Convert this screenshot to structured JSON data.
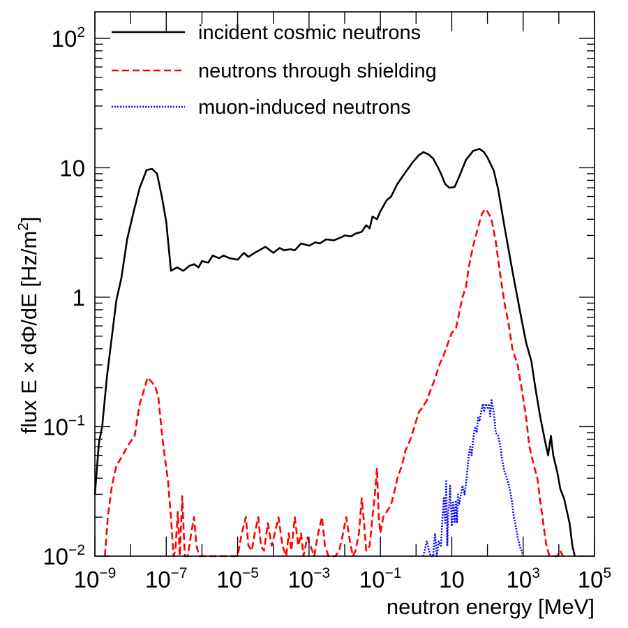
{
  "chart_data": {
    "type": "line",
    "xlabel": "neutron energy [MeV]",
    "ylabel": "flux E × dΦ/dE [Hz/m²]",
    "ylabel_main": "flux E × dΦ/dE [Hz/m",
    "ylabel_sup": "2",
    "ylabel_end": "]",
    "xscale": "log",
    "yscale": "log",
    "xlim": [
      1e-09,
      100000.0
    ],
    "ylim": [
      0.01,
      160
    ],
    "x_ticks": [
      {
        "value": 1e-09,
        "base": "10",
        "exp": "−9"
      },
      {
        "value": 1e-07,
        "base": "10",
        "exp": "−7"
      },
      {
        "value": 1e-05,
        "base": "10",
        "exp": "−5"
      },
      {
        "value": 0.001,
        "base": "10",
        "exp": "−3"
      },
      {
        "value": 0.1,
        "base": "10",
        "exp": "−1"
      },
      {
        "value": 10,
        "base": "10",
        "exp": ""
      },
      {
        "value": 1000,
        "base": "10",
        "exp": "3"
      },
      {
        "value": 100000,
        "base": "10",
        "exp": "5"
      }
    ],
    "y_ticks": [
      {
        "value": 0.01,
        "base": "10",
        "exp": "−2"
      },
      {
        "value": 0.1,
        "base": "10",
        "exp": "−1"
      },
      {
        "value": 1,
        "base": "1",
        "exp": ""
      },
      {
        "value": 10,
        "base": "10",
        "exp": ""
      },
      {
        "value": 100,
        "base": "10",
        "exp": "2"
      }
    ],
    "legend_position": "top-right",
    "series": [
      {
        "name": "incident cosmic neutrons",
        "color": "#000000",
        "style": "solid",
        "points": [
          [
            1e-09,
            0.03
          ],
          [
            1.3e-09,
            0.075
          ],
          [
            1.6e-09,
            0.1
          ],
          [
            2.2e-09,
            0.25
          ],
          [
            3e-09,
            0.5
          ],
          [
            4e-09,
            0.95
          ],
          [
            5.5e-09,
            1.4
          ],
          [
            8e-09,
            2.8
          ],
          [
            1.2e-08,
            4.5
          ],
          [
            1.8e-08,
            7.0
          ],
          [
            2.8e-08,
            9.6
          ],
          [
            4e-08,
            9.8
          ],
          [
            5.5e-08,
            9.0
          ],
          [
            7.5e-08,
            6.0
          ],
          [
            1e-07,
            3.8
          ],
          [
            1.35e-07,
            1.6
          ],
          [
            2e-07,
            1.7
          ],
          [
            3e-07,
            1.6
          ],
          [
            4.5e-07,
            1.75
          ],
          [
            6e-07,
            1.8
          ],
          [
            8e-07,
            1.7
          ],
          [
            1e-06,
            1.9
          ],
          [
            1.5e-06,
            1.85
          ],
          [
            2e-06,
            2.1
          ],
          [
            3e-06,
            2.0
          ],
          [
            4e-06,
            2.1
          ],
          [
            6e-06,
            2.0
          ],
          [
            1e-05,
            1.95
          ],
          [
            1.5e-05,
            2.2
          ],
          [
            2e-05,
            2.05
          ],
          [
            3e-05,
            2.2
          ],
          [
            4e-05,
            2.3
          ],
          [
            6e-05,
            2.45
          ],
          [
            0.0001,
            2.2
          ],
          [
            0.00015,
            2.4
          ],
          [
            0.0002,
            2.3
          ],
          [
            0.0003,
            2.35
          ],
          [
            0.0004,
            2.3
          ],
          [
            0.0006,
            2.6
          ],
          [
            0.001,
            2.5
          ],
          [
            0.0015,
            2.65
          ],
          [
            0.002,
            2.6
          ],
          [
            0.003,
            2.8
          ],
          [
            0.005,
            2.75
          ],
          [
            0.008,
            2.9
          ],
          [
            0.01,
            3.0
          ],
          [
            0.015,
            2.95
          ],
          [
            0.02,
            3.1
          ],
          [
            0.03,
            3.2
          ],
          [
            0.04,
            3.6
          ],
          [
            0.05,
            3.4
          ],
          [
            0.06,
            4.2
          ],
          [
            0.08,
            4.0
          ],
          [
            0.1,
            4.6
          ],
          [
            0.15,
            5.6
          ],
          [
            0.2,
            6.0
          ],
          [
            0.3,
            7.5
          ],
          [
            0.5,
            9.2
          ],
          [
            0.8,
            11.0
          ],
          [
            1.2,
            12.5
          ],
          [
            1.6,
            13.2
          ],
          [
            2.2,
            12.7
          ],
          [
            3,
            11.8
          ],
          [
            4,
            10.2
          ],
          [
            5,
            9.0
          ],
          [
            6.5,
            7.5
          ],
          [
            8.5,
            7.0
          ],
          [
            12,
            7.1
          ],
          [
            16,
            8.5
          ],
          [
            25,
            11.5
          ],
          [
            40,
            13.5
          ],
          [
            60,
            14.0
          ],
          [
            80,
            13.2
          ],
          [
            100,
            12.0
          ],
          [
            150,
            9.5
          ],
          [
            200,
            6.8
          ],
          [
            300,
            3.5
          ],
          [
            500,
            1.6
          ],
          [
            800,
            0.8
          ],
          [
            1200,
            0.45
          ],
          [
            1700,
            0.32
          ],
          [
            2200,
            0.2
          ],
          [
            3000,
            0.12
          ],
          [
            4000,
            0.08
          ],
          [
            5000,
            0.06
          ],
          [
            6000,
            0.085
          ],
          [
            7000,
            0.06
          ],
          [
            9000,
            0.045
          ],
          [
            11000,
            0.033
          ],
          [
            14000,
            0.028
          ],
          [
            17000,
            0.022
          ],
          [
            20000,
            0.018
          ],
          [
            24000,
            0.012
          ],
          [
            28000,
            0.01
          ]
        ]
      },
      {
        "name": "neutrons through shielding",
        "color": "#ff0000",
        "style": "dashed",
        "points": [
          [
            1.9e-09,
            0.01
          ],
          [
            2.3e-09,
            0.02
          ],
          [
            3e-09,
            0.035
          ],
          [
            4e-09,
            0.05
          ],
          [
            6e-09,
            0.06
          ],
          [
            8e-09,
            0.07
          ],
          [
            1.3e-08,
            0.085
          ],
          [
            1.8e-08,
            0.15
          ],
          [
            2.5e-08,
            0.2
          ],
          [
            3e-08,
            0.24
          ],
          [
            4e-08,
            0.22
          ],
          [
            5e-08,
            0.2
          ],
          [
            6e-08,
            0.17
          ],
          [
            7.5e-08,
            0.09
          ],
          [
            9e-08,
            0.06
          ],
          [
            1.1e-07,
            0.04
          ],
          [
            1.35e-07,
            0.02
          ],
          [
            1.6e-07,
            0.01
          ],
          [
            1.8e-07,
            0.011
          ],
          [
            2.1e-07,
            0.022
          ],
          [
            2.4e-07,
            0.01
          ],
          [
            2.8e-07,
            0.029
          ],
          [
            3.3e-07,
            0.01
          ],
          [
            4e-07,
            0.01
          ],
          [
            5e-07,
            0.015
          ],
          [
            6e-07,
            0.02
          ],
          [
            7e-07,
            0.012
          ],
          [
            8.5e-07,
            0.01
          ],
          [
            1e-06,
            0.01
          ],
          [
            1.3e-06,
            0.01
          ],
          [
            1.7e-06,
            0.01
          ],
          [
            2e-06,
            0.01
          ],
          [
            2.5e-06,
            0.01
          ],
          [
            3e-06,
            0.01
          ],
          [
            4e-06,
            0.01
          ],
          [
            5e-06,
            0.01
          ],
          [
            7e-06,
            0.01
          ],
          [
            1e-05,
            0.01
          ],
          [
            1.3e-05,
            0.015
          ],
          [
            1.7e-05,
            0.02
          ],
          [
            2e-05,
            0.012
          ],
          [
            2.5e-05,
            0.011
          ],
          [
            3e-05,
            0.015
          ],
          [
            3.8e-05,
            0.02
          ],
          [
            4.5e-05,
            0.012
          ],
          [
            5.5e-05,
            0.011
          ],
          [
            7e-05,
            0.018
          ],
          [
            9e-05,
            0.012
          ],
          [
            0.00011,
            0.015
          ],
          [
            0.00014,
            0.02
          ],
          [
            0.00018,
            0.012
          ],
          [
            0.00023,
            0.01
          ],
          [
            0.00027,
            0.015
          ],
          [
            0.00032,
            0.011
          ],
          [
            0.0004,
            0.02
          ],
          [
            0.0005,
            0.012
          ],
          [
            0.0006,
            0.015
          ],
          [
            0.0007,
            0.01
          ],
          [
            0.0009,
            0.014
          ],
          [
            0.0011,
            0.012
          ],
          [
            0.0014,
            0.01
          ],
          [
            0.0018,
            0.015
          ],
          [
            0.0023,
            0.02
          ],
          [
            0.0028,
            0.012
          ],
          [
            0.0035,
            0.01
          ],
          [
            0.0045,
            0.01
          ],
          [
            0.0055,
            0.01
          ],
          [
            0.007,
            0.011
          ],
          [
            0.009,
            0.015
          ],
          [
            0.011,
            0.02
          ],
          [
            0.014,
            0.013
          ],
          [
            0.017,
            0.01
          ],
          [
            0.02,
            0.011
          ],
          [
            0.025,
            0.015
          ],
          [
            0.03,
            0.028
          ],
          [
            0.035,
            0.018
          ],
          [
            0.04,
            0.011
          ],
          [
            0.05,
            0.012
          ],
          [
            0.06,
            0.02
          ],
          [
            0.07,
            0.03
          ],
          [
            0.08,
            0.048
          ],
          [
            0.09,
            0.02
          ],
          [
            0.1,
            0.015
          ],
          [
            0.12,
            0.02
          ],
          [
            0.15,
            0.022
          ],
          [
            0.2,
            0.025
          ],
          [
            0.25,
            0.032
          ],
          [
            0.3,
            0.04
          ],
          [
            0.4,
            0.05
          ],
          [
            0.5,
            0.065
          ],
          [
            0.7,
            0.08
          ],
          [
            0.9,
            0.1
          ],
          [
            1.2,
            0.13
          ],
          [
            1.5,
            0.14
          ],
          [
            2,
            0.16
          ],
          [
            2.7,
            0.2
          ],
          [
            3.5,
            0.24
          ],
          [
            4.5,
            0.3
          ],
          [
            6,
            0.36
          ],
          [
            8,
            0.45
          ],
          [
            10,
            0.53
          ],
          [
            13,
            0.57
          ],
          [
            16,
            0.75
          ],
          [
            20,
            1.0
          ],
          [
            25,
            1.2
          ],
          [
            30,
            1.7
          ],
          [
            40,
            2.5
          ],
          [
            55,
            3.5
          ],
          [
            70,
            4.4
          ],
          [
            85,
            4.8
          ],
          [
            100,
            4.6
          ],
          [
            130,
            4.0
          ],
          [
            170,
            2.7
          ],
          [
            220,
            1.6
          ],
          [
            300,
            0.9
          ],
          [
            400,
            0.6
          ],
          [
            500,
            0.4
          ],
          [
            700,
            0.3
          ],
          [
            900,
            0.2
          ],
          [
            1200,
            0.12
          ],
          [
            1500,
            0.07
          ],
          [
            2000,
            0.05
          ],
          [
            2500,
            0.04
          ],
          [
            3000,
            0.027
          ],
          [
            3500,
            0.02
          ],
          [
            4000,
            0.015
          ],
          [
            4500,
            0.012
          ],
          [
            5500,
            0.01
          ],
          [
            9000,
            0.01
          ],
          [
            11000,
            0.011
          ],
          [
            13000,
            0.01
          ]
        ]
      },
      {
        "name": "muon-induced neutrons",
        "color": "#0000ff",
        "style": "dotted",
        "points": [
          [
            1.6,
            0.01
          ],
          [
            2,
            0.013
          ],
          [
            2.3,
            0.011
          ],
          [
            2.6,
            0.01
          ],
          [
            3,
            0.01
          ],
          [
            3.4,
            0.015
          ],
          [
            3.8,
            0.01
          ],
          [
            4.3,
            0.013
          ],
          [
            5,
            0.012
          ],
          [
            5.5,
            0.02
          ],
          [
            6,
            0.028
          ],
          [
            6.5,
            0.018
          ],
          [
            7,
            0.038
          ],
          [
            7.5,
            0.012
          ],
          [
            8,
            0.022
          ],
          [
            8.5,
            0.025
          ],
          [
            9,
            0.035
          ],
          [
            10,
            0.017
          ],
          [
            11,
            0.026
          ],
          [
            12,
            0.018
          ],
          [
            13,
            0.027
          ],
          [
            14,
            0.018
          ],
          [
            15,
            0.03
          ],
          [
            16,
            0.025
          ],
          [
            18,
            0.03
          ],
          [
            20,
            0.035
          ],
          [
            23,
            0.03
          ],
          [
            26,
            0.04
          ],
          [
            30,
            0.06
          ],
          [
            33,
            0.07
          ],
          [
            36,
            0.06
          ],
          [
            40,
            0.08
          ],
          [
            45,
            0.1
          ],
          [
            50,
            0.09
          ],
          [
            55,
            0.12
          ],
          [
            60,
            0.11
          ],
          [
            70,
            0.14
          ],
          [
            75,
            0.15
          ],
          [
            80,
            0.13
          ],
          [
            90,
            0.15
          ],
          [
            100,
            0.14
          ],
          [
            110,
            0.15
          ],
          [
            120,
            0.12
          ],
          [
            130,
            0.16
          ],
          [
            150,
            0.13
          ],
          [
            170,
            0.09
          ],
          [
            200,
            0.085
          ],
          [
            230,
            0.07
          ],
          [
            260,
            0.055
          ],
          [
            300,
            0.045
          ],
          [
            350,
            0.04
          ],
          [
            400,
            0.035
          ],
          [
            450,
            0.03
          ],
          [
            500,
            0.025
          ],
          [
            550,
            0.02
          ],
          [
            600,
            0.018
          ],
          [
            650,
            0.016
          ],
          [
            700,
            0.014
          ],
          [
            750,
            0.013
          ],
          [
            800,
            0.012
          ],
          [
            900,
            0.011
          ],
          [
            1000,
            0.01
          ]
        ]
      }
    ]
  }
}
